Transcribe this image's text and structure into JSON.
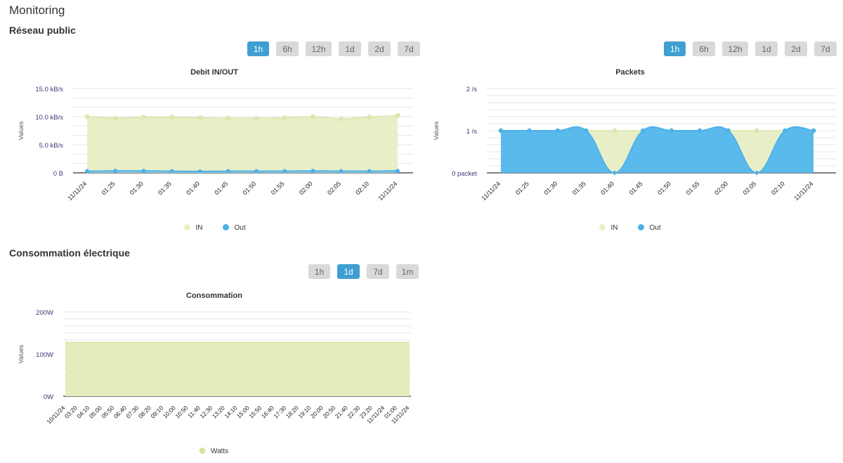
{
  "page": {
    "title": "Monitoring"
  },
  "network": {
    "section_title": "Réseau public",
    "ranges_left": [
      {
        "label": "1h",
        "active": true
      },
      {
        "label": "6h",
        "active": false
      },
      {
        "label": "12h",
        "active": false
      },
      {
        "label": "1d",
        "active": false
      },
      {
        "label": "2d",
        "active": false
      },
      {
        "label": "7d",
        "active": false
      }
    ],
    "ranges_right": [
      {
        "label": "1h",
        "active": true
      },
      {
        "label": "6h",
        "active": false
      },
      {
        "label": "12h",
        "active": false
      },
      {
        "label": "1d",
        "active": false
      },
      {
        "label": "2d",
        "active": false
      },
      {
        "label": "7d",
        "active": false
      }
    ]
  },
  "power": {
    "section_title": "Consommation électrique",
    "ranges": [
      {
        "label": "1h",
        "active": false
      },
      {
        "label": "1d",
        "active": true
      },
      {
        "label": "7d",
        "active": false
      },
      {
        "label": "1m",
        "active": false
      }
    ]
  },
  "colors": {
    "in_fill": "#e8efc7",
    "in_line": "#d4e6a8",
    "in_marker": "#d9e8b0",
    "out": "#4db1ea",
    "out_fill": "#5bbaec",
    "watts": "#e2ecbc",
    "watts_marker": "#d5e6a1",
    "active_btn": "#3f9fd3"
  },
  "chart_data": [
    {
      "id": "debit",
      "type": "area",
      "title": "Debit IN/OUT",
      "ylabel": "Values",
      "ylim": [
        0,
        15
      ],
      "yticks": [
        0,
        5,
        10,
        15
      ],
      "ytick_labels": [
        "0 B",
        "5.0 kB/s",
        "10.0 kB/s",
        "15.0 kB/s"
      ],
      "x": [
        "11/11/24",
        "01:25",
        "01:30",
        "01:35",
        "01:40",
        "01:45",
        "01:50",
        "01:55",
        "02:00",
        "02:05",
        "02:10",
        "11/11/24"
      ],
      "series": [
        {
          "name": "IN",
          "values": [
            10.0,
            9.7,
            9.9,
            9.9,
            9.8,
            9.7,
            9.7,
            9.8,
            10.0,
            9.6,
            9.9,
            10.2
          ]
        },
        {
          "name": "Out",
          "values": [
            0.3,
            0.35,
            0.35,
            0.3,
            0.25,
            0.3,
            0.3,
            0.3,
            0.35,
            0.3,
            0.3,
            0.35
          ]
        }
      ],
      "legend": "bottom-center"
    },
    {
      "id": "packets",
      "type": "area",
      "title": "Packets",
      "ylabel": "Values",
      "ylim": [
        0,
        2
      ],
      "yticks": [
        0,
        1,
        2
      ],
      "ytick_labels": [
        "0 packet",
        "1 /s",
        "2 /s"
      ],
      "x": [
        "11/11/24",
        "01:25",
        "01:30",
        "01:35",
        "01:40",
        "01:45",
        "01:50",
        "01:55",
        "02:00",
        "02:05",
        "02:10",
        "11/11/24"
      ],
      "series": [
        {
          "name": "IN",
          "values": [
            1,
            1,
            1,
            1,
            1,
            1,
            1,
            1,
            1,
            1,
            1,
            1
          ]
        },
        {
          "name": "Out",
          "values": [
            1,
            1,
            1,
            1,
            0,
            1,
            1,
            1,
            1,
            0,
            1,
            1
          ]
        }
      ],
      "legend": "bottom-center"
    },
    {
      "id": "conso",
      "type": "area",
      "title": "Consommation",
      "ylabel": "Values",
      "ylim": [
        0,
        200
      ],
      "yticks": [
        0,
        100,
        200
      ],
      "ytick_labels": [
        "0W",
        "100W",
        "200W"
      ],
      "x": [
        "10/11/24",
        "03:20",
        "04:10",
        "05:00",
        "05:50",
        "06:40",
        "07:30",
        "08:20",
        "09:10",
        "10:00",
        "10:50",
        "11:40",
        "12:30",
        "13:20",
        "14:10",
        "15:00",
        "15:50",
        "16:40",
        "17:30",
        "18:20",
        "19:10",
        "20:00",
        "20:50",
        "21:40",
        "22:30",
        "23:20",
        "11/11/24",
        "01:00",
        "11/11/24"
      ],
      "series": [
        {
          "name": "Watts",
          "values": [
            128,
            128,
            128,
            128,
            128,
            128,
            128,
            128,
            128,
            128,
            128,
            128,
            128,
            128,
            128,
            128,
            128,
            128,
            128,
            128,
            128,
            128,
            128,
            128,
            128,
            128,
            128,
            128,
            128
          ]
        }
      ],
      "legend": "bottom-center"
    }
  ]
}
